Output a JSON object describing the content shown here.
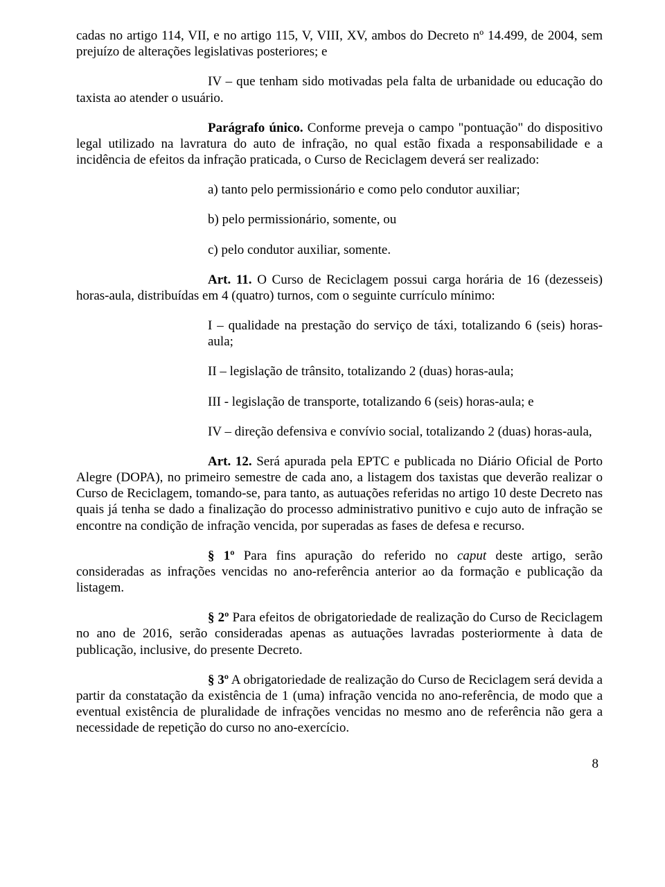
{
  "p1": "cadas no artigo 114, VII, e no artigo 115, V, VIII, XV, ambos do Decreto nº 14.499, de 2004, sem prejuízo de alterações legislativas posteriores; e",
  "p2": "IV – que tenham sido motivadas pela falta de urbanidade ou educação do taxista ao atender o usuário.",
  "p3_label": "Parágrafo único.",
  "p3_text": "  Conforme preveja o campo \"pontuação\" do dispositivo legal utilizado na lavratura do auto de infração, no qual estão fixada a responsabilidade e a incidência de efeitos da infração praticada, o Curso de Reciclagem deverá ser realizado:",
  "item_a": "a) tanto pelo permissionário e como pelo condutor auxiliar;",
  "item_b": "b) pelo permissionário, somente, ou",
  "item_c": "c) pelo condutor auxiliar, somente.",
  "art11_label": "Art. 11.",
  "art11_text": "  O Curso de Reciclagem possui carga horária de 16 (dezesseis) horas-aula, distribuídas em 4 (quatro) turnos, com o seguinte currículo mínimo:",
  "item_I": "I – qualidade na prestação do serviço de táxi, totalizando 6 (seis) horas-aula;",
  "item_II": "II – legislação de trânsito, totalizando 2 (duas) horas-aula;",
  "item_III": "III - legislação de transporte, totalizando 6 (seis) horas-aula; e",
  "item_IV": "IV – direção defensiva e convívio social, totalizando 2 (duas) horas-aula,",
  "art12_label": "Art. 12.",
  "art12_text": "  Será apurada pela EPTC e publicada no Diário Oficial de Porto Alegre (DOPA), no primeiro semestre de cada ano, a listagem dos taxistas que deverão realizar o Curso de Reciclagem, tomando-se, para tanto, as autuações referidas no artigo 10 deste Decreto nas quais já tenha se dado a finalização do processo administrativo punitivo e cujo auto de infração se encontre na condição de infração vencida, por superadas as fases de defesa e recurso.",
  "s1_label": "§ 1º",
  "s1_text_a": "  Para fins apuração do referido no ",
  "s1_caput": "caput",
  "s1_text_b": " deste artigo, serão consideradas as infrações vencidas no ano-referência anterior ao da formação e publicação da listagem.",
  "s2_label": "§ 2º",
  "s2_text": "  Para efeitos de obrigatoriedade de realização do Curso de Reciclagem no ano de 2016, serão consideradas apenas as autuações lavradas posteriormente à data de publicação, inclusive, do presente Decreto.",
  "s3_label": "§ 3º",
  "s3_text": "  A obrigatoriedade de realização do Curso de Reciclagem será devida a partir da constatação da existência de 1 (uma) infração vencida no ano-referência, de modo que a eventual existência de pluralidade de infrações vencidas no mesmo ano de referência não gera a necessidade de repetição do curso no ano-exercício.",
  "page_number": "8"
}
